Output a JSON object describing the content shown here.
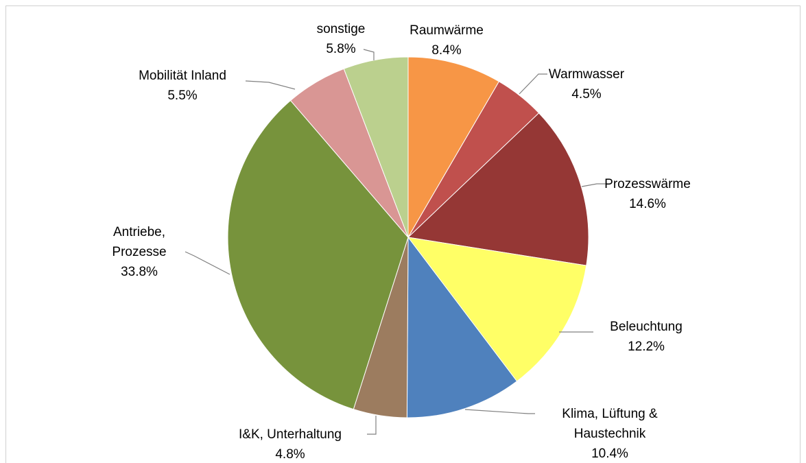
{
  "chart_data": {
    "type": "pie",
    "categories": [
      "Raumwärme",
      "Warmwasser",
      "Prozesswärme",
      "Beleuchtung",
      "Klima, Lüftung & Haustechnik",
      "I&K, Unterhaltung",
      "Antriebe, Prozesse",
      "Mobilität Inland",
      "sonstige"
    ],
    "values": [
      8.4,
      4.5,
      14.6,
      12.2,
      10.4,
      4.8,
      33.8,
      5.5,
      5.8
    ],
    "value_labels": [
      "8.4%",
      "4.5%",
      "14.6%",
      "12.2%",
      "10.4%",
      "4.8%",
      "33.8%",
      "5.5%",
      "5.8%"
    ],
    "colors": [
      "#f79646",
      "#c0504d",
      "#953735",
      "#ffff66",
      "#4f81bd",
      "#9c7c5f",
      "#77933c",
      "#d99694",
      "#bbd08e"
    ]
  }
}
